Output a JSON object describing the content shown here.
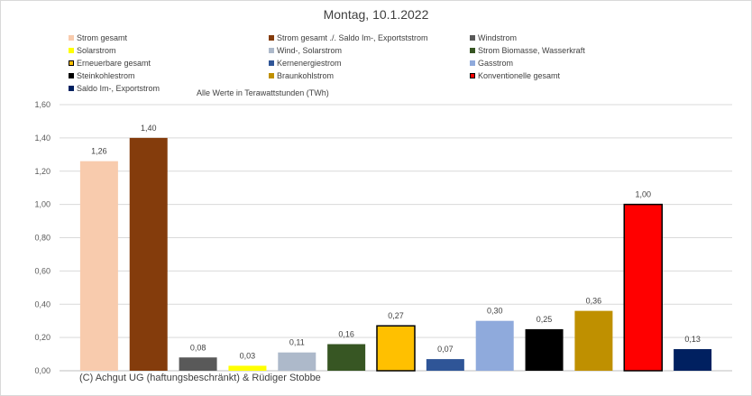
{
  "chart_data": {
    "type": "bar",
    "title": "Montag, 10.1.2022",
    "note": "Alle Werte in Terawattstunden (TWh)",
    "copyright": "(C) Achgut UG (haftungsbeschränkt) & Rüdiger Stobbe",
    "ylim": [
      0,
      1.6
    ],
    "y_ticks": [
      "0,00",
      "0,20",
      "0,40",
      "0,60",
      "0,80",
      "1,00",
      "1,20",
      "1,40",
      "1,60"
    ],
    "grid": true,
    "legend_position": "top",
    "series": [
      {
        "name": "Strom gesamt",
        "value": 1.26,
        "label": "1,26",
        "color": "#f8cbad",
        "outline": false
      },
      {
        "name": "Strom gesamt ./. Saldo Im-, Exportststrom",
        "value": 1.4,
        "label": "1,40",
        "color": "#843c0c",
        "outline": false
      },
      {
        "name": "Windstrom",
        "value": 0.08,
        "label": "0,08",
        "color": "#595959",
        "outline": false
      },
      {
        "name": "Solarstrom",
        "value": 0.03,
        "label": "0,03",
        "color": "#ffff00",
        "outline": false
      },
      {
        "name": "Wind-, Solarstrom",
        "value": 0.11,
        "label": "0,11",
        "color": "#adb9ca",
        "outline": false
      },
      {
        "name": "Strom Biomasse, Wasserkraft",
        "value": 0.16,
        "label": "0,16",
        "color": "#375623",
        "outline": false
      },
      {
        "name": "Erneuerbare gesamt",
        "value": 0.27,
        "label": "0,27",
        "color": "#ffc000",
        "outline": true
      },
      {
        "name": "Kernenergiestrom",
        "value": 0.07,
        "label": "0,07",
        "color": "#2f5597",
        "outline": false
      },
      {
        "name": "Gasstrom",
        "value": 0.3,
        "label": "0,30",
        "color": "#8faadc",
        "outline": false
      },
      {
        "name": "Steinkohlestrom",
        "value": 0.25,
        "label": "0,25",
        "color": "#000000",
        "outline": false
      },
      {
        "name": "Braunkohlstrom",
        "value": 0.36,
        "label": "0,36",
        "color": "#bf9000",
        "outline": false
      },
      {
        "name": "Konventionelle gesamt",
        "value": 1.0,
        "label": "1,00",
        "color": "#ff0000",
        "outline": true
      },
      {
        "name": "Saldo Im-, Exportstrom",
        "value": 0.13,
        "label": "0,13",
        "color": "#002060",
        "outline": false
      }
    ]
  }
}
